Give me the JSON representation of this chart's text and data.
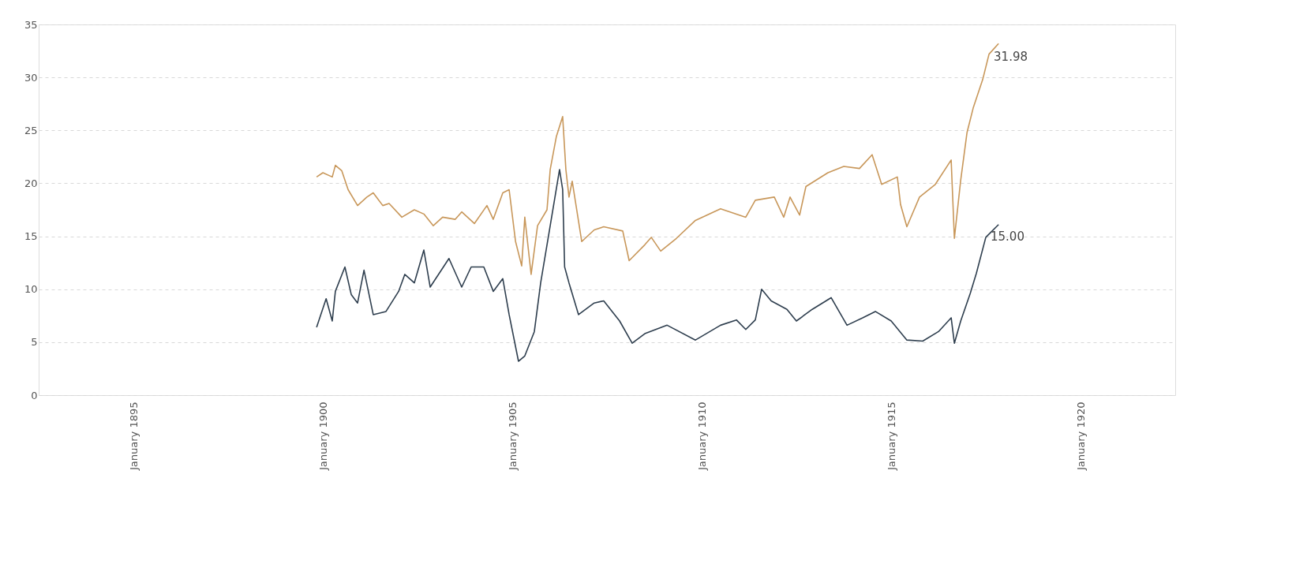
{
  "chart_data": {
    "type": "line",
    "xlim": [
      "1892-07",
      "1922-07"
    ],
    "xticks": [
      {
        "value": "1895-01",
        "label": "January 1895"
      },
      {
        "value": "1900-01",
        "label": "January 1900"
      },
      {
        "value": "1905-01",
        "label": "January 1905"
      },
      {
        "value": "1910-01",
        "label": "January 1910"
      },
      {
        "value": "1915-01",
        "label": "January 1915"
      },
      {
        "value": "1920-01",
        "label": "January 1920"
      }
    ],
    "ylim": [
      0,
      35
    ],
    "yticks": [
      0,
      5,
      10,
      15,
      20,
      25,
      30,
      35
    ],
    "grid": "y",
    "series": [
      {
        "color": "#2e3e4e",
        "x": [
          "1899-11",
          "1900-02",
          "1900-04",
          "1900-05",
          "1900-08",
          "1900-10",
          "1900-12",
          "1901-02",
          "1901-05",
          "1901-09",
          "1902-01",
          "1902-03",
          "1902-06",
          "1902-09",
          "1902-11",
          "1903-05",
          "1903-09",
          "1903-12",
          "1904-04",
          "1904-07",
          "1904-10",
          "1904-12",
          "1905-03",
          "1905-05",
          "1905-08",
          "1905-10",
          "1906-01",
          "1906-04",
          "1906-05",
          "1906-05-20",
          "1906-07",
          "1906-10",
          "1907-03",
          "1907-06",
          "1907-11",
          "1908-03",
          "1908-07",
          "1909-02",
          "1909-11",
          "1910-07",
          "1910-12",
          "1911-03",
          "1911-06",
          "1911-08",
          "1911-11",
          "1912-04",
          "1912-07",
          "1912-12",
          "1913-06",
          "1913-11",
          "1914-04",
          "1914-08",
          "1915-01",
          "1915-06",
          "1915-11",
          "1916-04",
          "1916-08",
          "1916-09",
          "1916-11",
          "1917-02",
          "1917-04",
          "1917-07",
          "1917-11"
        ],
        "values": [
          6.4,
          9.1,
          7.0,
          9.8,
          12.1,
          9.5,
          8.7,
          11.8,
          7.6,
          7.9,
          9.8,
          11.4,
          10.6,
          13.7,
          10.2,
          12.9,
          10.2,
          12.1,
          12.1,
          9.8,
          11.0,
          7.6,
          3.2,
          3.7,
          6.0,
          10.6,
          16.0,
          21.3,
          19.4,
          12.1,
          10.6,
          7.6,
          8.7,
          8.9,
          7.0,
          4.9,
          5.8,
          6.6,
          5.2,
          6.6,
          7.1,
          6.2,
          7.1,
          10.0,
          8.9,
          8.1,
          7.0,
          8.1,
          9.2,
          6.6,
          7.3,
          7.9,
          7.0,
          5.2,
          5.1,
          6.0,
          7.3,
          4.9,
          7.0,
          9.6,
          11.5,
          14.9,
          16.1
        ]
      },
      {
        "color": "#c8975a",
        "x": [
          "1899-11",
          "1900-01",
          "1900-04",
          "1900-05",
          "1900-07",
          "1900-09",
          "1900-12",
          "1901-03",
          "1901-05",
          "1901-08",
          "1901-10",
          "1902-02",
          "1902-06",
          "1902-09",
          "1902-12",
          "1903-03",
          "1903-07",
          "1903-09",
          "1904-01",
          "1904-05",
          "1904-07",
          "1904-10",
          "1904-12",
          "1905-02",
          "1905-04",
          "1905-05",
          "1905-07",
          "1905-09",
          "1905-12",
          "1906-01",
          "1906-03",
          "1906-05",
          "1906-06",
          "1906-07",
          "1906-08",
          "1906-11",
          "1907-03",
          "1907-06",
          "1907-12",
          "1908-02",
          "1908-07",
          "1908-09",
          "1908-12",
          "1909-05",
          "1909-11",
          "1910-07",
          "1911-03",
          "1911-06",
          "1911-12",
          "1912-03",
          "1912-05",
          "1912-08",
          "1912-10",
          "1913-05",
          "1913-10",
          "1914-03",
          "1914-07",
          "1914-10",
          "1915-03",
          "1915-04",
          "1915-06",
          "1915-10",
          "1916-03",
          "1916-08",
          "1916-09",
          "1916-11",
          "1917-01",
          "1917-03",
          "1917-06",
          "1917-08",
          "1917-11"
        ],
        "values": [
          20.6,
          21.0,
          20.6,
          21.7,
          21.2,
          19.4,
          17.9,
          18.7,
          19.1,
          17.9,
          18.1,
          16.8,
          17.5,
          17.1,
          16.0,
          16.8,
          16.6,
          17.3,
          16.2,
          17.9,
          16.6,
          19.1,
          19.4,
          14.5,
          12.2,
          16.8,
          11.4,
          16.0,
          17.5,
          21.3,
          24.4,
          26.3,
          21.3,
          18.7,
          20.2,
          14.5,
          15.6,
          15.9,
          15.5,
          12.7,
          14.2,
          14.9,
          13.6,
          14.8,
          16.5,
          17.6,
          16.8,
          18.4,
          18.7,
          16.8,
          18.7,
          17.0,
          19.7,
          21.0,
          21.6,
          21.4,
          22.7,
          19.9,
          20.6,
          18.0,
          15.9,
          18.7,
          19.9,
          22.2,
          14.8,
          20.3,
          24.8,
          27.1,
          29.8,
          32.2,
          33.2
        ]
      }
    ],
    "annotations": [
      {
        "text": "31.98",
        "x": "1917-08",
        "y": 31.98
      },
      {
        "text": "15.00",
        "x": "1917-07",
        "y": 15.0
      }
    ]
  }
}
